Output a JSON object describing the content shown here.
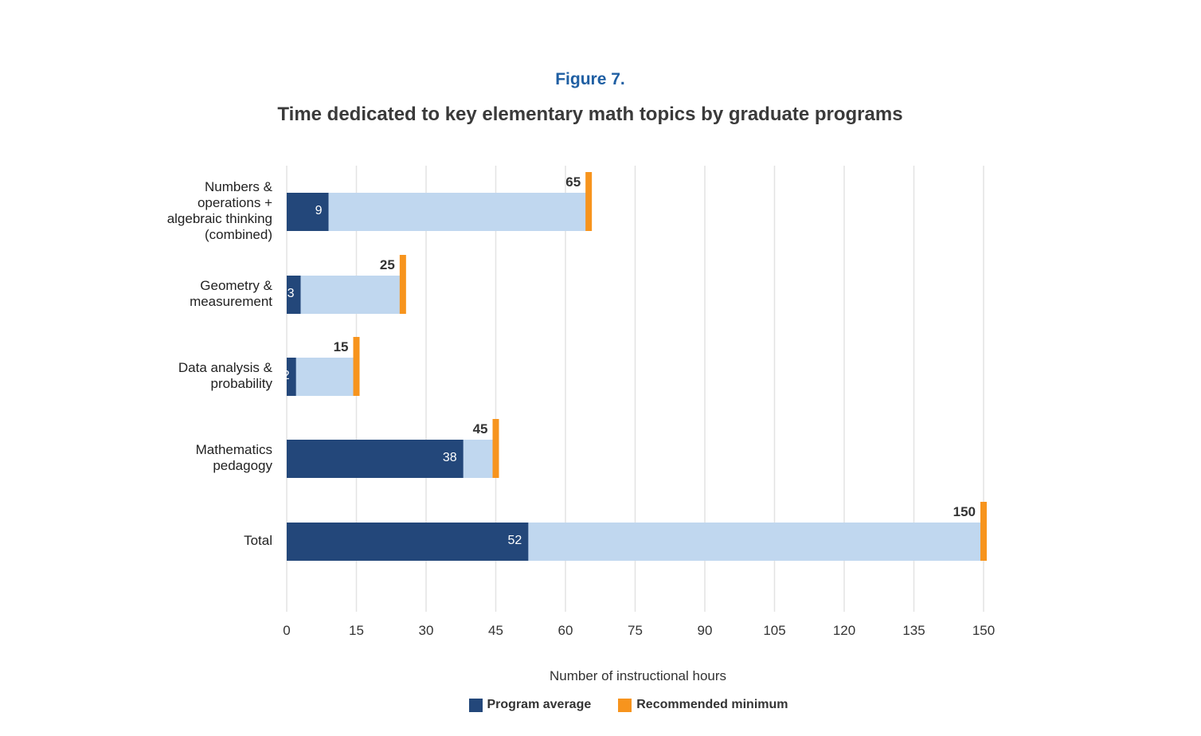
{
  "figure_label": "Figure 7.",
  "chart_data": {
    "type": "bar",
    "orientation": "horizontal",
    "title": "Time dedicated to key elementary math topics by graduate programs",
    "categories": [
      [
        "Numbers &",
        "operations +",
        "algebraic thinking",
        "(combined)"
      ],
      [
        "Geometry &",
        "measurement"
      ],
      [
        "Data analysis &",
        "probability"
      ],
      [
        "Mathematics",
        "pedagogy"
      ],
      [
        "Total"
      ]
    ],
    "series": [
      {
        "name": "Program average",
        "values": [
          9,
          3,
          2,
          38,
          52
        ],
        "color": "#23477a"
      },
      {
        "name": "Recommended minimum",
        "values": [
          65,
          25,
          15,
          45,
          150
        ],
        "color": "#f7941d"
      }
    ],
    "gap_color": "#c0d7ef",
    "xlabel": "Number of instructional hours",
    "xlim": [
      0,
      150
    ],
    "xticks": [
      0,
      15,
      30,
      45,
      60,
      75,
      90,
      105,
      120,
      135,
      150
    ],
    "grid": true,
    "legend_position": "bottom"
  }
}
